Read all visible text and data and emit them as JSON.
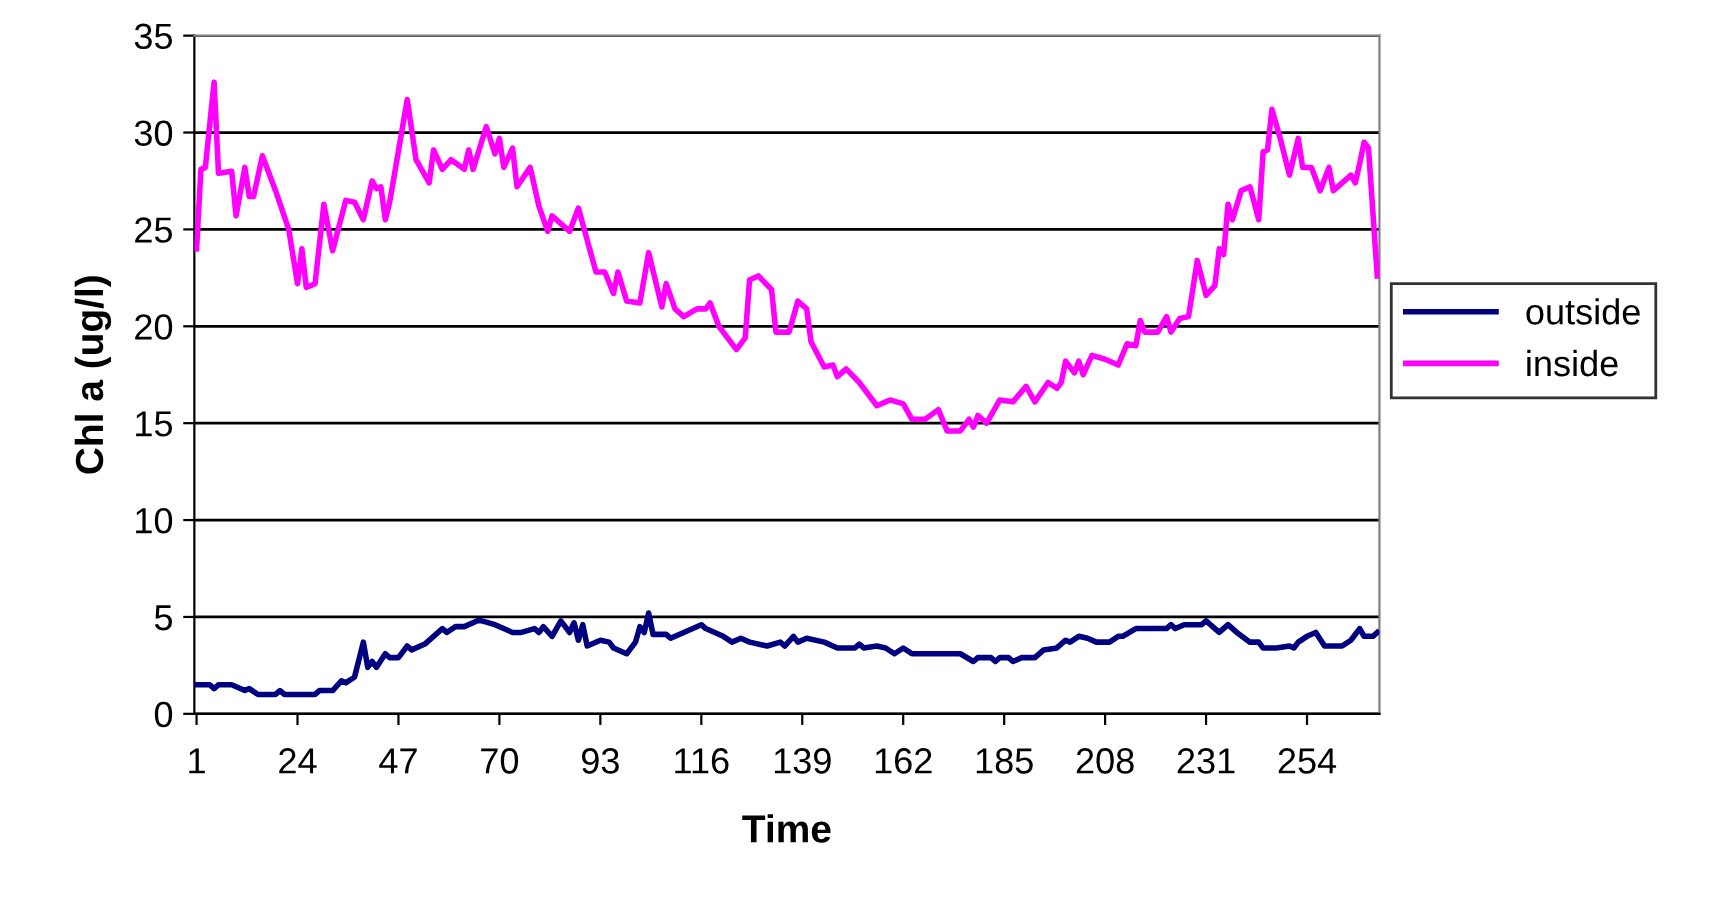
{
  "chart_data": {
    "type": "line",
    "xlabel": "Time",
    "ylabel": "Chl a (ug/l)",
    "xlim": [
      0.5,
      270.5
    ],
    "xticks": [
      1,
      24,
      47,
      70,
      93,
      116,
      139,
      162,
      185,
      208,
      231,
      254
    ],
    "ylim": [
      0,
      35
    ],
    "yticks": [
      0,
      5,
      10,
      15,
      20,
      25,
      30,
      35
    ],
    "grid": "y",
    "legend": "right",
    "marker": "none",
    "line_style": "solid",
    "series": [
      {
        "name": "outside",
        "color": "#000080",
        "x": [
          1,
          4,
          5,
          6,
          9,
          12,
          13,
          15,
          19,
          20,
          21,
          28,
          29,
          32,
          34,
          35,
          37,
          39,
          40,
          41,
          42,
          44,
          45,
          47,
          49,
          50,
          53,
          55,
          57,
          58,
          60,
          62,
          65,
          66,
          69,
          73,
          75,
          78,
          79,
          80,
          82,
          84,
          86,
          87,
          88,
          89,
          90,
          93,
          95,
          96,
          99,
          101,
          102,
          103,
          104,
          105,
          108,
          109,
          112,
          116,
          117,
          121,
          123,
          125,
          127,
          131,
          134,
          135,
          137,
          138,
          140,
          144,
          147,
          151,
          152,
          153,
          156,
          158,
          160,
          162,
          164,
          175,
          178,
          179,
          182,
          183,
          184,
          186,
          187,
          189,
          192,
          194,
          197,
          199,
          200,
          202,
          204,
          206,
          209,
          211,
          212,
          215,
          222,
          223,
          224,
          226,
          230,
          231,
          234,
          236,
          238,
          241,
          243,
          244,
          247,
          250,
          251,
          252,
          254,
          256,
          258,
          262,
          264,
          266,
          267,
          269,
          270
        ],
        "values": [
          1.5,
          1.5,
          1.3,
          1.5,
          1.5,
          1.2,
          1.3,
          1.0,
          1.0,
          1.2,
          1.0,
          1.0,
          1.2,
          1.2,
          1.7,
          1.6,
          1.9,
          3.7,
          2.4,
          2.7,
          2.4,
          3.1,
          2.9,
          2.9,
          3.5,
          3.3,
          3.6,
          4.0,
          4.4,
          4.2,
          4.5,
          4.5,
          4.8,
          4.8,
          4.6,
          4.2,
          4.2,
          4.4,
          4.2,
          4.5,
          4.0,
          4.8,
          4.2,
          4.7,
          3.8,
          4.6,
          3.5,
          3.8,
          3.7,
          3.4,
          3.1,
          3.7,
          4.5,
          4.2,
          5.2,
          4.1,
          4.1,
          3.9,
          4.2,
          4.6,
          4.4,
          4.0,
          3.7,
          3.9,
          3.7,
          3.5,
          3.7,
          3.5,
          4.0,
          3.7,
          3.9,
          3.7,
          3.4,
          3.4,
          3.6,
          3.4,
          3.5,
          3.4,
          3.1,
          3.4,
          3.1,
          3.1,
          2.7,
          2.9,
          2.9,
          2.7,
          2.9,
          2.9,
          2.7,
          2.9,
          2.9,
          3.3,
          3.4,
          3.8,
          3.7,
          4.0,
          3.9,
          3.7,
          3.7,
          4.0,
          4.0,
          4.4,
          4.4,
          4.6,
          4.4,
          4.6,
          4.6,
          4.8,
          4.2,
          4.6,
          4.2,
          3.7,
          3.7,
          3.4,
          3.4,
          3.5,
          3.4,
          3.7,
          4.0,
          4.2,
          3.5,
          3.5,
          3.8,
          4.4,
          4.0,
          4.0,
          4.2
        ]
      },
      {
        "name": "inside",
        "color": "#ff00ff",
        "x": [
          1,
          2,
          3,
          5,
          6,
          9,
          10,
          12,
          13,
          14,
          16,
          19,
          22,
          24,
          25,
          26,
          28,
          30,
          32,
          35,
          37,
          39,
          41,
          42,
          43,
          44,
          45,
          49,
          51,
          54,
          55,
          57,
          59,
          62,
          63,
          64,
          67,
          69,
          70,
          71,
          73,
          74,
          77,
          79,
          81,
          82,
          86,
          88,
          92,
          94,
          96,
          97,
          99,
          102,
          104,
          107,
          108,
          110,
          112,
          115,
          117,
          118,
          120,
          124,
          126,
          127,
          129,
          132,
          133,
          136,
          138,
          140,
          141,
          144,
          146,
          147,
          149,
          152,
          156,
          158,
          159,
          162,
          164,
          167,
          170,
          172,
          175,
          177,
          178,
          179,
          181,
          184,
          187,
          190,
          192,
          195,
          197,
          198,
          199,
          201,
          202,
          203,
          205,
          208,
          211,
          213,
          215,
          216,
          217,
          220,
          222,
          223,
          225,
          227,
          229,
          231,
          233,
          234,
          235,
          236,
          237,
          239,
          241,
          243,
          244,
          245,
          246,
          248,
          250,
          252,
          253,
          255,
          257,
          259,
          260,
          262,
          264,
          265,
          266,
          267,
          268,
          270
        ],
        "values": [
          24.0,
          28.1,
          28.2,
          32.6,
          27.9,
          28.0,
          25.7,
          28.2,
          26.7,
          26.7,
          28.8,
          27.0,
          25.0,
          22.2,
          24.0,
          22.0,
          22.2,
          26.3,
          23.9,
          26.5,
          26.4,
          25.5,
          27.5,
          27.1,
          27.2,
          25.5,
          26.4,
          31.7,
          28.6,
          27.4,
          29.1,
          28.1,
          28.6,
          28.1,
          29.1,
          28.1,
          30.3,
          28.9,
          29.7,
          28.2,
          29.2,
          27.2,
          28.2,
          26.2,
          24.9,
          25.7,
          24.9,
          26.1,
          22.8,
          22.8,
          21.7,
          22.8,
          21.3,
          21.2,
          23.8,
          21.0,
          22.2,
          20.9,
          20.5,
          20.9,
          20.9,
          21.2,
          20.0,
          18.8,
          19.4,
          22.4,
          22.6,
          21.9,
          19.7,
          19.7,
          21.3,
          20.9,
          19.2,
          17.9,
          18.0,
          17.4,
          17.8,
          17.1,
          15.9,
          16.1,
          16.2,
          16.0,
          15.2,
          15.2,
          15.7,
          14.6,
          14.6,
          15.2,
          14.8,
          15.4,
          15.0,
          16.2,
          16.1,
          16.9,
          16.1,
          17.1,
          16.8,
          17.1,
          18.2,
          17.6,
          18.2,
          17.5,
          18.5,
          18.3,
          18.0,
          19.1,
          19.0,
          20.3,
          19.7,
          19.7,
          20.5,
          19.7,
          20.4,
          20.5,
          23.4,
          21.6,
          22.1,
          24.0,
          23.7,
          26.3,
          25.5,
          27.0,
          27.2,
          25.5,
          29.0,
          29.1,
          31.2,
          29.6,
          27.8,
          29.7,
          28.2,
          28.2,
          27.0,
          28.2,
          27.0,
          27.4,
          27.8,
          27.4,
          28.4,
          29.5,
          29.2,
          22.6
        ]
      }
    ]
  }
}
